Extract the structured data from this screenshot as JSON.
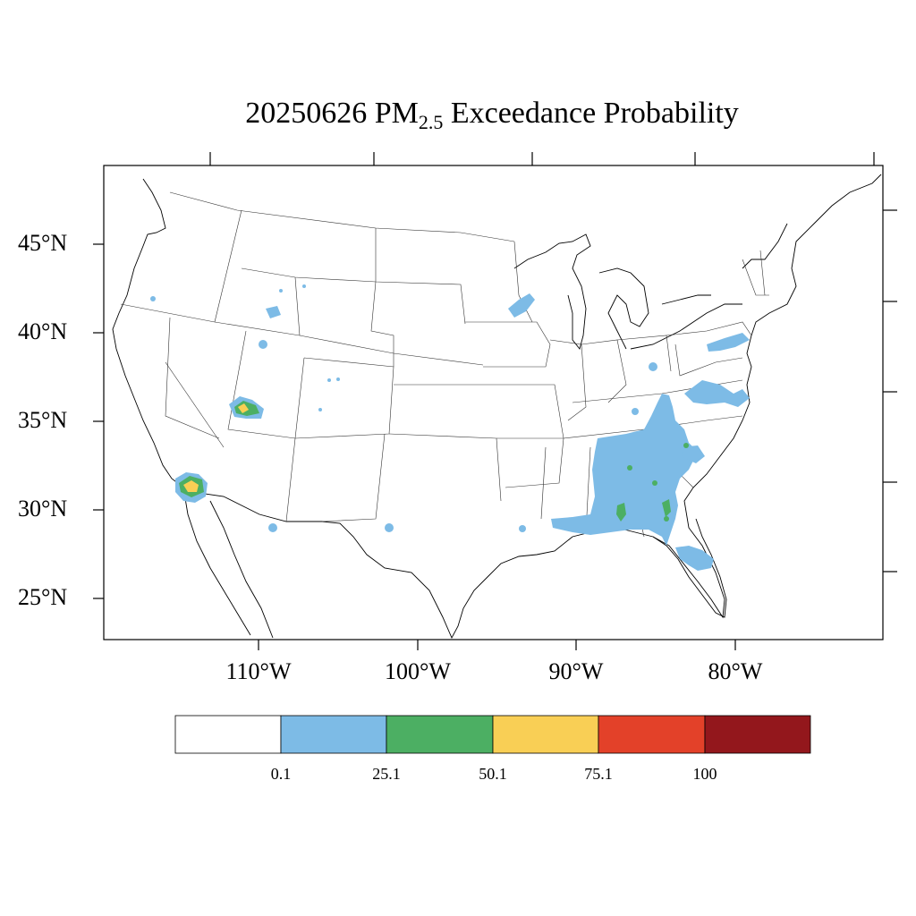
{
  "title": {
    "prefix": "20250626 PM",
    "subscript": "2.5",
    "suffix": " Exceedance Probability"
  },
  "lat_labels": [
    "45°N",
    "40°N",
    "35°N",
    "30°N",
    "25°N"
  ],
  "lon_labels": [
    "110°W",
    "100°W",
    "90°W",
    "80°W"
  ],
  "colorbar": {
    "colors": [
      "#ffffff",
      "#7dbbe6",
      "#4caf63",
      "#f9cf55",
      "#e34129",
      "#93171c"
    ],
    "labels": [
      "0.1",
      "25.1",
      "50.1",
      "75.1",
      "100"
    ]
  }
}
